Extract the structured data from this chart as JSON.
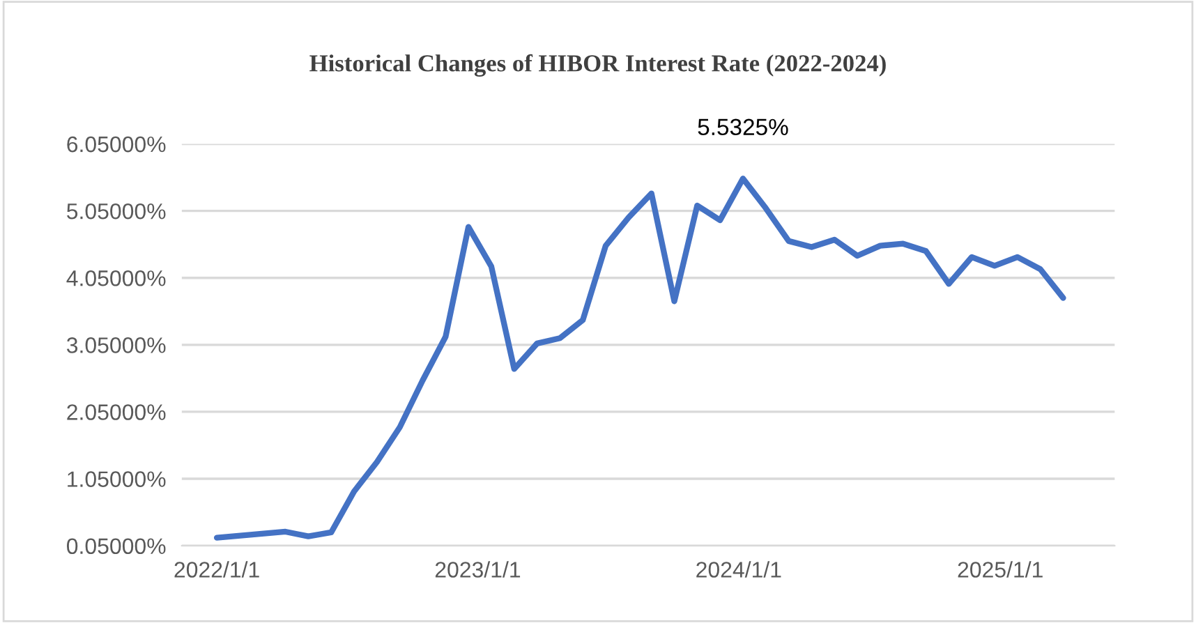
{
  "chart_data": {
    "type": "line",
    "title": "Historical Changes of HIBOR Interest Rate (2022-2024)",
    "x": [
      "2022-01-01",
      "2022-04-07",
      "2022-05-09",
      "2022-06-10",
      "2022-07-12",
      "2022-08-13",
      "2022-09-14",
      "2022-10-16",
      "2022-11-17",
      "2022-12-19",
      "2023-01-20",
      "2023-02-21",
      "2023-03-25",
      "2023-04-26",
      "2023-05-28",
      "2023-06-29",
      "2023-07-31",
      "2023-09-01",
      "2023-10-03",
      "2023-11-04",
      "2023-12-06",
      "2024-01-07",
      "2024-02-08",
      "2024-03-11",
      "2024-04-12",
      "2024-05-14",
      "2024-06-15",
      "2024-07-17",
      "2024-08-18",
      "2024-09-19",
      "2024-10-21",
      "2024-11-22",
      "2024-12-24",
      "2025-01-25",
      "2025-02-26",
      "2025-03-30"
    ],
    "series": [
      {
        "color": "#4472c4",
        "values": [
          0.17,
          0.26,
          0.19,
          0.25,
          0.86,
          1.3,
          1.82,
          2.52,
          3.17,
          4.81,
          4.22,
          2.69,
          3.07,
          3.15,
          3.42,
          4.53,
          4.95,
          5.31,
          3.7,
          5.13,
          4.91,
          5.5325,
          5.09,
          4.6,
          4.51,
          4.62,
          4.38,
          4.53,
          4.56,
          4.45,
          3.96,
          4.36,
          4.23,
          4.36,
          4.18,
          3.75
        ]
      }
    ],
    "annotations": [
      {
        "text": "5.5325%",
        "x": "2024-01-07",
        "y": 5.5325
      }
    ],
    "xlim": [
      "2021-11-13",
      "2025-06-10"
    ],
    "xticks": [
      {
        "value": "2022-01-01",
        "label": "2022/1/1"
      },
      {
        "value": "2023-01-01",
        "label": "2023/1/1"
      },
      {
        "value": "2024-01-01",
        "label": "2024/1/1"
      },
      {
        "value": "2025-01-01",
        "label": "2025/1/1"
      }
    ],
    "ylim": [
      0.05,
      6.05
    ],
    "yticks": [
      {
        "value": 0.05,
        "label": "0.05000%"
      },
      {
        "value": 1.05,
        "label": "1.05000%"
      },
      {
        "value": 2.05,
        "label": "2.05000%"
      },
      {
        "value": 3.05,
        "label": "3.05000%"
      },
      {
        "value": 4.05,
        "label": "4.05000%"
      },
      {
        "value": 5.05,
        "label": "5.05000%"
      },
      {
        "value": 6.05,
        "label": "6.05000%"
      }
    ],
    "grid": "y",
    "marker": "none",
    "line_style": "solid"
  }
}
